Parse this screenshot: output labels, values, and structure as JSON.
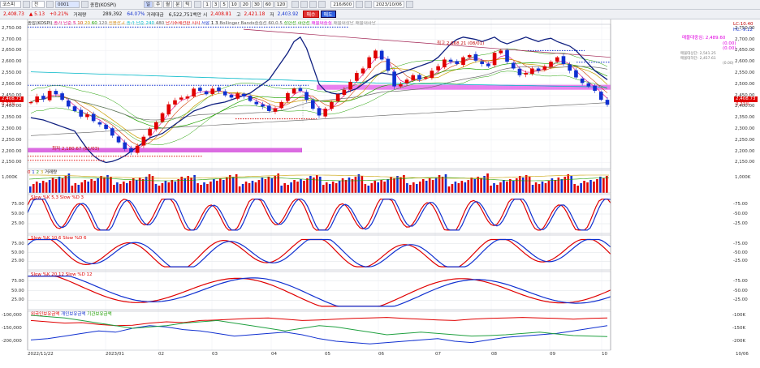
{
  "toolbar": {
    "code": "코스피",
    "type": "전",
    "selected": "0001",
    "market_name": "종합(KOSPI)",
    "periods": [
      "일",
      "주",
      "월",
      "분",
      "틱"
    ],
    "minutes": [
      "1",
      "3",
      "5",
      "10",
      "20",
      "30",
      "60",
      "120"
    ],
    "count": "216/600",
    "date": "2023/10/06",
    "price": "2,408.73",
    "change": "▲ 5.13",
    "change_pct": "+0.21%",
    "vol_label": "거래량",
    "volume": "289,392",
    "pct2": "64.07%",
    "amount_label": "거래대금",
    "amount": "6,522,751백만",
    "open_label": "시",
    "open": "2,408.81",
    "high_label": "고",
    "high": "2,421.18",
    "low_label": "저",
    "low": "2,403.92",
    "buy": "매수",
    "sell": "매도"
  },
  "legend": {
    "main": [
      "종합(KOSPI)",
      "종가 단순 5",
      "10",
      "20",
      "60",
      "120",
      "신용잔고",
      "종가 단순 240",
      "480",
      "단기추세전환",
      "지지",
      "저항",
      "1",
      "3",
      "Bollinger Bands중심선 60,0.5",
      "상한선",
      "하한선",
      "매물대중심",
      "매물대상단",
      "매물대하단"
    ],
    "vol": [
      "0",
      "1",
      "2",
      "3",
      "거래량"
    ],
    "st1": "Slow %K 5,3  Slow %D 3",
    "st2": "Slow %K 10,6  Slow %D 6",
    "st3": "Slow %K 20,12  Slow %D 12",
    "flow": [
      "외국인보유금액",
      "개인보유금액",
      "기관보유금액"
    ]
  },
  "annotations": {
    "high": "최고 2,668.21 (08/01)",
    "low": "최저 2,180.67 (01/03)",
    "right_top": [
      "LC:10.40",
      "HC:-9.12"
    ],
    "right_mid": [
      "매물대중심: 2,489.60",
      "(0.00)",
      "(0.00)"
    ],
    "right_small": [
      "매물대상단: 2,541.25",
      "매물대하단: 2,457.61",
      "(0.00)"
    ],
    "left_price": "2,408.73",
    "left_pct": "0.21%",
    "right_price": "2,408.73",
    "right_pct": "0.21%"
  },
  "axis": {
    "price": [
      "2,750.00",
      "2,700.00",
      "2,650.00",
      "2,600.00",
      "2,550.00",
      "2,500.00",
      "2,450.00",
      "2,400.00",
      "2,350.00",
      "2,300.00",
      "2,250.00",
      "2,200.00",
      "2,150.00"
    ],
    "vol": "1,000K",
    "stoch": [
      "75.00",
      "50.00",
      "25.00"
    ],
    "flow": [
      "-100,000",
      "-150,000",
      "-200,000"
    ],
    "months": [
      "2022/11/22",
      "2023/01",
      "02",
      "03",
      "04",
      "05",
      "06",
      "07",
      "08",
      "09",
      "10"
    ],
    "end_date": "10/06"
  },
  "chart_data": {
    "type": "candlestick",
    "ylim": [
      2130,
      2760
    ],
    "close": [
      2420,
      2445,
      2432,
      2470,
      2455,
      2430,
      2400,
      2380,
      2355,
      2365,
      2335,
      2320,
      2300,
      2270,
      2240,
      2210,
      2196,
      2225,
      2265,
      2300,
      2330,
      2370,
      2410,
      2428,
      2440,
      2445,
      2480,
      2470,
      2455,
      2480,
      2470,
      2450,
      2440,
      2458,
      2445,
      2425,
      2410,
      2400,
      2380,
      2392,
      2420,
      2460,
      2480,
      2470,
      2430,
      2390,
      2360,
      2390,
      2420,
      2455,
      2475,
      2510,
      2550,
      2570,
      2620,
      2650,
      2610,
      2560,
      2490,
      2500,
      2520,
      2540,
      2520,
      2530,
      2560,
      2580,
      2610,
      2600,
      2590,
      2620,
      2630,
      2605,
      2590,
      2580,
      2640,
      2650,
      2600,
      2570,
      2540,
      2550,
      2570,
      2560,
      2580,
      2600,
      2620,
      2590,
      2560,
      2530,
      2505,
      2490,
      2470,
      2430,
      2408
    ],
    "flow": {
      "foreign": [
        -120,
        -125,
        -130,
        -128,
        -135,
        -140,
        -138,
        -130,
        -125,
        -128,
        -120,
        -118,
        -115,
        -112,
        -110,
        -115,
        -120,
        -118,
        -115,
        -112,
        -110,
        -108,
        -112,
        -115,
        -118,
        -120,
        -115,
        -112,
        -110,
        -108,
        -110,
        -112,
        -115,
        -112,
        -110
      ],
      "individual": [
        -195,
        -190,
        -180,
        -170,
        -160,
        -165,
        -150,
        -140,
        -145,
        -155,
        -160,
        -170,
        -180,
        -175,
        -170,
        -165,
        -175,
        -190,
        -200,
        -205,
        -210,
        -205,
        -200,
        -195,
        -190,
        -200,
        -205,
        -195,
        -185,
        -180,
        -175,
        -170,
        -160,
        -150,
        -140
      ],
      "institution": [
        -100,
        -105,
        -110,
        -120,
        -130,
        -140,
        -150,
        -145,
        -140,
        -130,
        -125,
        -120,
        -130,
        -140,
        -150,
        -160,
        -150,
        -140,
        -145,
        -155,
        -165,
        -175,
        -170,
        -165,
        -170,
        -175,
        -180,
        -178,
        -175,
        -170,
        -165,
        -172,
        -178,
        -180,
        -182
      ]
    }
  },
  "colors": {
    "up": "#e00000",
    "down": "#1030d0",
    "box": "#e040e0",
    "support": "#e01010",
    "resist": "#1030d0"
  }
}
